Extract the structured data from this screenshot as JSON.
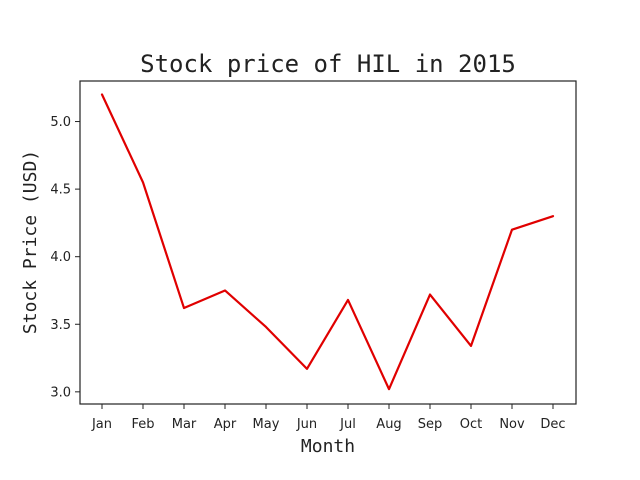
{
  "chart_data": {
    "type": "line",
    "title": "Stock price of HIL in 2015",
    "xlabel": "Month",
    "ylabel": "Stock Price (USD)",
    "categories": [
      "Jan",
      "Feb",
      "Mar",
      "Apr",
      "May",
      "Jun",
      "Jul",
      "Aug",
      "Sep",
      "Oct",
      "Nov",
      "Dec"
    ],
    "series": [
      {
        "values": [
          5.2,
          4.55,
          3.62,
          3.75,
          3.48,
          3.17,
          3.68,
          3.02,
          3.72,
          3.34,
          4.2,
          4.3
        ],
        "color": "#e00000"
      }
    ],
    "yticks": [
      "3.0",
      "3.5",
      "4.0",
      "4.5",
      "5.0"
    ],
    "ylim": [
      2.91,
      5.3
    ],
    "grid": false,
    "legend": "none"
  }
}
